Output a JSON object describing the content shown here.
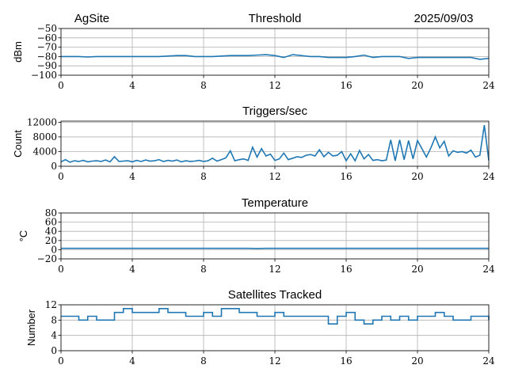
{
  "header": {
    "site": "AgSite",
    "date": "2025/09/03"
  },
  "colors": {
    "line": "#1f77b4",
    "grid": "#b0b0b0"
  },
  "chart_data": [
    {
      "type": "line",
      "title": "Threshold",
      "ylabel": "dBm",
      "xlim": [
        0,
        24
      ],
      "ylim": [
        -100,
        -50
      ],
      "grid": true,
      "xticks": [
        0,
        4,
        8,
        12,
        16,
        20,
        24
      ],
      "yticks": [
        -100,
        -90,
        -80,
        -70,
        -60,
        -50
      ],
      "x": [
        0,
        0.5,
        1,
        1.5,
        2,
        2.5,
        3,
        3.5,
        4,
        4.5,
        5,
        5.5,
        6,
        6.5,
        7,
        7.5,
        8,
        8.5,
        9,
        9.5,
        10,
        10.5,
        11,
        11.5,
        12,
        12.5,
        13,
        13.5,
        14,
        14.5,
        15,
        15.5,
        16,
        16.5,
        17,
        17.5,
        18,
        18.5,
        19,
        19.5,
        20,
        20.5,
        21,
        21.5,
        22,
        22.5,
        23,
        23.5,
        24
      ],
      "y": [
        -80,
        -80,
        -80,
        -80.5,
        -80,
        -80,
        -80,
        -80,
        -80,
        -80,
        -80,
        -80,
        -79.5,
        -79,
        -79,
        -80,
        -80,
        -80,
        -79.5,
        -79,
        -79,
        -79,
        -78.5,
        -78,
        -79,
        -81,
        -78,
        -79,
        -80,
        -80,
        -81,
        -81,
        -81,
        -80,
        -78.5,
        -81,
        -80,
        -80,
        -80,
        -82,
        -81,
        -81,
        -81,
        -81,
        -81,
        -81,
        -81,
        -83,
        -82
      ]
    },
    {
      "type": "line",
      "title": "Triggers/sec",
      "ylabel": "Count",
      "xlim": [
        0,
        24
      ],
      "ylim": [
        0,
        12300
      ],
      "grid": true,
      "xticks": [
        0,
        4,
        8,
        12,
        16,
        20,
        24
      ],
      "yticks": [
        0,
        4000,
        8000,
        12000
      ],
      "x_every": 0.25,
      "y": [
        1200,
        1800,
        1100,
        1500,
        1300,
        1600,
        1200,
        1400,
        1500,
        1300,
        1700,
        1200,
        2600,
        1300,
        1400,
        1500,
        1200,
        1600,
        1300,
        1700,
        1400,
        1500,
        1800,
        1300,
        1600,
        1400,
        1700,
        1200,
        1500,
        1300,
        1400,
        1600,
        1300,
        1500,
        2200,
        1400,
        1800,
        2300,
        4200,
        1500,
        1800,
        2000,
        1600,
        5200,
        2500,
        4800,
        2800,
        3300,
        1600,
        2000,
        3600,
        1800,
        2200,
        2600,
        2400,
        3000,
        3200,
        2800,
        4500,
        2600,
        3800,
        2800,
        3000,
        4000,
        1500,
        3400,
        1500,
        4300,
        2000,
        3200,
        1600,
        1800,
        1500,
        1700,
        7200,
        1500,
        7200,
        1800,
        7000,
        2000,
        7000,
        4800,
        2500,
        5000,
        8000,
        5000,
        6800,
        2800,
        4200,
        3800,
        4000,
        3600,
        4400,
        2500,
        3000,
        11200,
        1600
      ]
    },
    {
      "type": "line",
      "title": "Temperature",
      "ylabel": "°C",
      "xlim": [
        0,
        24
      ],
      "ylim": [
        -20,
        80
      ],
      "grid": true,
      "xticks": [
        0,
        4,
        8,
        12,
        16,
        20,
        24
      ],
      "yticks": [
        -20,
        0,
        20,
        40,
        60,
        80
      ],
      "x": [
        0,
        4,
        8,
        10.5,
        11,
        11.5,
        12,
        16,
        20,
        24
      ],
      "y": [
        3,
        3,
        3,
        3,
        2.5,
        3,
        3,
        3,
        3,
        3
      ]
    },
    {
      "type": "line",
      "title": "Satellites Tracked",
      "ylabel": "Number",
      "xlim": [
        0,
        24
      ],
      "ylim": [
        0,
        12
      ],
      "grid": true,
      "xticks": [
        0,
        4,
        8,
        12,
        16,
        20,
        24
      ],
      "yticks": [
        0,
        4,
        8,
        12
      ],
      "step": true,
      "x": [
        0,
        0.5,
        1,
        1.5,
        2,
        2.5,
        3,
        3.5,
        4,
        4.5,
        5,
        5.5,
        6,
        6.5,
        7,
        7.5,
        8,
        8.5,
        9,
        9.5,
        10,
        10.5,
        11,
        11.5,
        12,
        12.5,
        13,
        13.5,
        14,
        14.5,
        15,
        15.5,
        16,
        16.5,
        17,
        17.5,
        18,
        18.5,
        19,
        19.5,
        20,
        20.5,
        21,
        21.5,
        22,
        22.5,
        23,
        23.5,
        24
      ],
      "y": [
        9,
        9,
        8,
        9,
        8,
        8,
        10,
        11,
        10,
        10,
        10,
        11,
        10,
        10,
        9,
        9,
        10,
        9,
        11,
        11,
        10,
        10,
        9,
        9,
        10,
        9,
        9,
        9,
        9,
        9,
        7,
        9,
        10,
        8,
        7,
        8,
        9,
        8,
        9,
        8,
        9,
        9,
        10,
        9,
        8,
        8,
        9,
        9,
        8
      ]
    }
  ]
}
